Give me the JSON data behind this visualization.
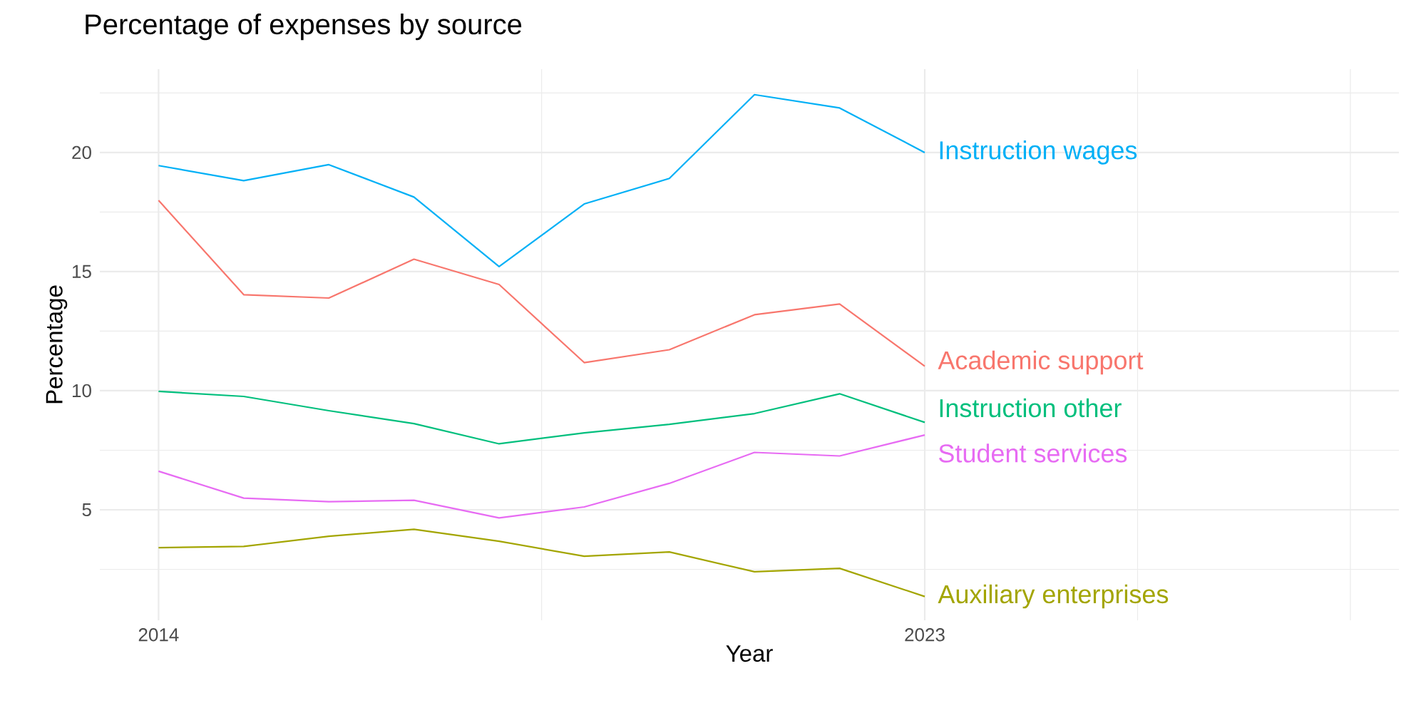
{
  "chart_data": {
    "type": "line",
    "title": "Percentage of expenses by source",
    "xlabel": "Year",
    "ylabel": "Percentage",
    "x": [
      2014,
      2015,
      2016,
      2017,
      2018,
      2019,
      2020,
      2021,
      2022,
      2023
    ],
    "series": [
      {
        "name": "Academic support",
        "color": "#f8766d",
        "values": [
          17.99,
          14.03,
          13.89,
          15.52,
          14.46,
          11.18,
          11.72,
          13.19,
          13.64,
          11.03
        ]
      },
      {
        "name": "Auxiliary enterprises",
        "color": "#a3a500",
        "values": [
          3.41,
          3.46,
          3.89,
          4.18,
          3.68,
          3.05,
          3.23,
          2.4,
          2.54,
          1.36
        ]
      },
      {
        "name": "Instruction other",
        "color": "#00bf7d",
        "values": [
          9.97,
          9.76,
          9.16,
          8.62,
          7.77,
          8.23,
          8.59,
          9.04,
          9.87,
          8.67
        ]
      },
      {
        "name": "Instruction wages",
        "color": "#00b0f6",
        "values": [
          19.45,
          18.82,
          19.49,
          18.13,
          15.21,
          17.84,
          18.91,
          22.43,
          21.87,
          20.0
        ]
      },
      {
        "name": "Student services",
        "color": "#e76bf3",
        "values": [
          6.62,
          5.49,
          5.34,
          5.4,
          4.66,
          5.12,
          6.11,
          7.41,
          7.26,
          8.14
        ]
      }
    ],
    "xlim": [
      2013.31,
      2028.57
    ],
    "ylim": [
      0.36,
      23.5
    ],
    "xticks": [
      2014,
      {
        "value": 2018.5,
        "label": null
      },
      2023,
      {
        "value": 2025.5,
        "label": null
      },
      {
        "value": 2028,
        "label": null
      }
    ],
    "yticks": [
      {
        "value": 2.5,
        "label": null
      },
      5,
      {
        "value": 7.5,
        "label": null
      },
      10,
      {
        "value": 12.5,
        "label": null
      },
      15,
      {
        "value": 17.5,
        "label": null
      },
      20,
      {
        "value": 22.5,
        "label": null
      }
    ],
    "grid": true,
    "line_style": "solid"
  }
}
